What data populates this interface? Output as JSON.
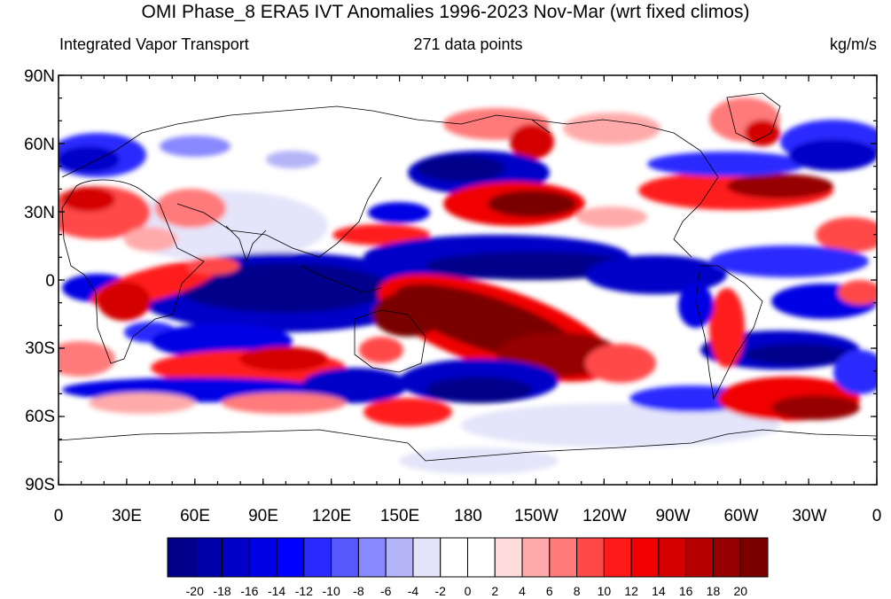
{
  "title": "OMI Phase_8 ERA5 IVT Anomalies 1996-2023 Nov-Mar (wrt fixed climos)",
  "subtitle_left": "Integrated Vapor Transport",
  "subtitle_center": "271 data points",
  "subtitle_right": "kg/m/s",
  "lat_ticks": [
    "90N",
    "60N",
    "30N",
    "0",
    "30S",
    "60S",
    "90S"
  ],
  "lon_ticks": [
    "0",
    "30E",
    "60E",
    "90E",
    "120E",
    "150E",
    "180",
    "150W",
    "120W",
    "90W",
    "60W",
    "30W",
    "0"
  ],
  "colorbar": {
    "labels": [
      "-20",
      "-18",
      "-16",
      "-14",
      "-12",
      "-10",
      "-8",
      "-6",
      "-4",
      "-2",
      "0",
      "2",
      "4",
      "6",
      "8",
      "10",
      "12",
      "14",
      "16",
      "18",
      "20"
    ],
    "colors": [
      "#00008b",
      "#0000a8",
      "#0000c8",
      "#0000e4",
      "#0000ff",
      "#2a2aff",
      "#5858ff",
      "#8888ff",
      "#b4b4f8",
      "#e4e4fa",
      "#ffffff",
      "#ffffff",
      "#ffdcdc",
      "#ffaaaa",
      "#ff7a7a",
      "#ff4848",
      "#ff1a1a",
      "#f00000",
      "#d40000",
      "#b40000",
      "#960000",
      "#7a0000"
    ]
  }
}
